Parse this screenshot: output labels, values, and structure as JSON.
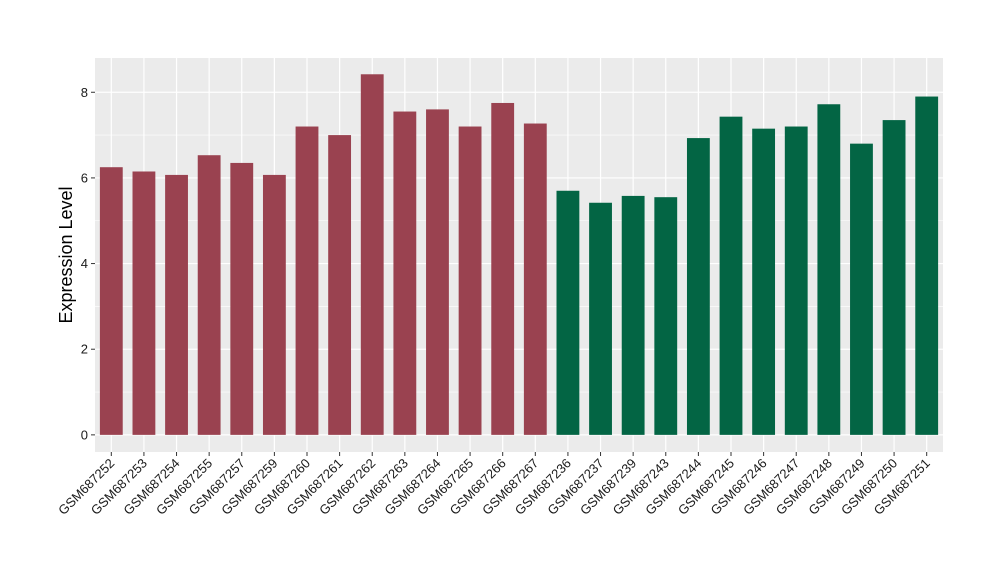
{
  "chart_data": {
    "type": "bar",
    "title": "",
    "xlabel": "",
    "ylabel": "Expression Level",
    "ylim": [
      -0.4,
      8.8
    ],
    "yticks": [
      0,
      2,
      4,
      6,
      8
    ],
    "grid": true,
    "legend": "none",
    "categories": [
      "GSM687252",
      "GSM687253",
      "GSM687254",
      "GSM687255",
      "GSM687257",
      "GSM687259",
      "GSM687260",
      "GSM687261",
      "GSM687262",
      "GSM687263",
      "GSM687264",
      "GSM687265",
      "GSM687266",
      "GSM687267",
      "GSM687236",
      "GSM687237",
      "GSM687239",
      "GSM687243",
      "GSM687244",
      "GSM687245",
      "GSM687246",
      "GSM687247",
      "GSM687248",
      "GSM687249",
      "GSM687250",
      "GSM687251"
    ],
    "values": [
      6.25,
      6.15,
      6.07,
      6.53,
      6.35,
      6.07,
      7.2,
      7.0,
      8.42,
      7.55,
      7.6,
      7.2,
      7.75,
      7.27,
      5.7,
      5.42,
      5.58,
      5.55,
      6.93,
      7.43,
      7.15,
      7.2,
      7.72,
      6.8,
      7.35,
      7.9
    ],
    "groups": [
      0,
      0,
      0,
      0,
      0,
      0,
      0,
      0,
      0,
      0,
      0,
      0,
      0,
      0,
      1,
      1,
      1,
      1,
      1,
      1,
      1,
      1,
      1,
      1,
      1,
      1
    ],
    "group_colors": [
      "#9A4250",
      "#036544"
    ],
    "panel_color": "#EBEBEB",
    "grid_color": "#FFFFFF"
  }
}
